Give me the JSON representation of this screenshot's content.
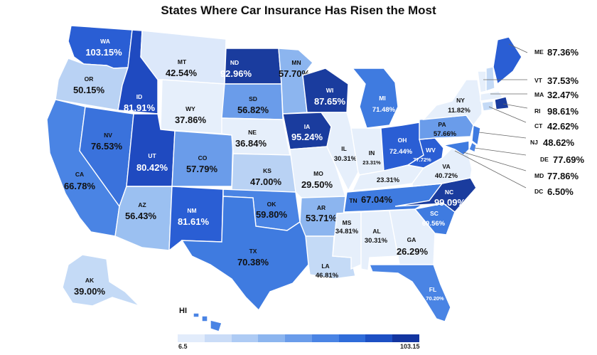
{
  "title": "States Where Car Insurance Has Risen the Most",
  "legend": {
    "min_label": "6.5",
    "max_label": "103.15",
    "colors": [
      "#e2ecfb",
      "#cadcf7",
      "#aecbf4",
      "#8cb5ef",
      "#6a9cea",
      "#4a84e4",
      "#2f6cd9",
      "#1d50c4",
      "#1335a0"
    ]
  },
  "colors": {
    "lightest": "#e6effb",
    "light": "#c4daf6",
    "mid_light": "#9bc0f1",
    "mid": "#6a9cea",
    "mid_dark": "#3f7be0",
    "dark": "#2a5ed4",
    "darkest": "#1a3c9e"
  },
  "states": {
    "WA": {
      "code": "WA",
      "value": "103.15%"
    },
    "OR": {
      "code": "OR",
      "value": "50.15%"
    },
    "CA": {
      "code": "CA",
      "value": "66.78%"
    },
    "ID": {
      "code": "ID",
      "value": "81.91%"
    },
    "NV": {
      "code": "NV",
      "value": "76.53%"
    },
    "MT": {
      "code": "MT",
      "value": "42.54%"
    },
    "WY": {
      "code": "WY",
      "value": "37.86%"
    },
    "UT": {
      "code": "UT",
      "value": "80.42%"
    },
    "AZ": {
      "code": "AZ",
      "value": "56.43%"
    },
    "CO": {
      "code": "CO",
      "value": "57.79%"
    },
    "NM": {
      "code": "NM",
      "value": "81.61%"
    },
    "ND": {
      "code": "ND",
      "value": "92.96%"
    },
    "SD": {
      "code": "SD",
      "value": "56.82%"
    },
    "NE": {
      "code": "NE",
      "value": "36.84%"
    },
    "KS": {
      "code": "KS",
      "value": "47.00%"
    },
    "OK": {
      "code": "OK",
      "value": "59.80%"
    },
    "TX": {
      "code": "TX",
      "value": "70.38%"
    },
    "MN": {
      "code": "MN",
      "value": "57.70%"
    },
    "IA": {
      "code": "IA",
      "value": "95.24%"
    },
    "MO": {
      "code": "MO",
      "value": "29.50%"
    },
    "AR": {
      "code": "AR",
      "value": "53.71%"
    },
    "LA": {
      "code": "LA",
      "value": "46.81%"
    },
    "WI": {
      "code": "WI",
      "value": "87.65%"
    },
    "IL": {
      "code": "IL",
      "value": "30.31%"
    },
    "MI": {
      "code": "MI",
      "value": "71.48%"
    },
    "IN": {
      "code": "IN",
      "value": "23.31%"
    },
    "OH": {
      "code": "OH",
      "value": "72.44%"
    },
    "KY": {
      "code": "",
      "value": "23.31%"
    },
    "TN": {
      "code": "TN",
      "value": "67.04%"
    },
    "MS": {
      "code": "MS",
      "value": "34.81%"
    },
    "AL": {
      "code": "AL",
      "value": "30.31%"
    },
    "GA": {
      "code": "GA",
      "value": "26.29%"
    },
    "FL": {
      "code": "FL",
      "value": "70.20%"
    },
    "SC": {
      "code": "SC",
      "value": "69.56%"
    },
    "NC": {
      "code": "NC",
      "value": "99.09%"
    },
    "VA": {
      "code": "VA",
      "value": "40.72%"
    },
    "WV": {
      "code": "WV",
      "value": "77.72%"
    },
    "PA": {
      "code": "PA",
      "value": "57.66%"
    },
    "NY": {
      "code": "NY",
      "value": "11.82%"
    },
    "AK": {
      "code": "AK",
      "value": "39.00%"
    },
    "HI": {
      "code": "HI"
    }
  },
  "northeast": [
    {
      "code": "ME",
      "value": "87.36%"
    },
    {
      "code": "VT",
      "value": "37.53%"
    },
    {
      "code": "MA",
      "value": "32.47%"
    },
    {
      "code": "RI",
      "value": "98.61%"
    },
    {
      "code": "CT",
      "value": "42.62%"
    },
    {
      "code": "NJ",
      "value": "48.62%"
    },
    {
      "code": "DE",
      "value": "77.69%"
    },
    {
      "code": "MD",
      "value": "77.86%"
    },
    {
      "code": "DC",
      "value": "6.50%"
    }
  ]
}
